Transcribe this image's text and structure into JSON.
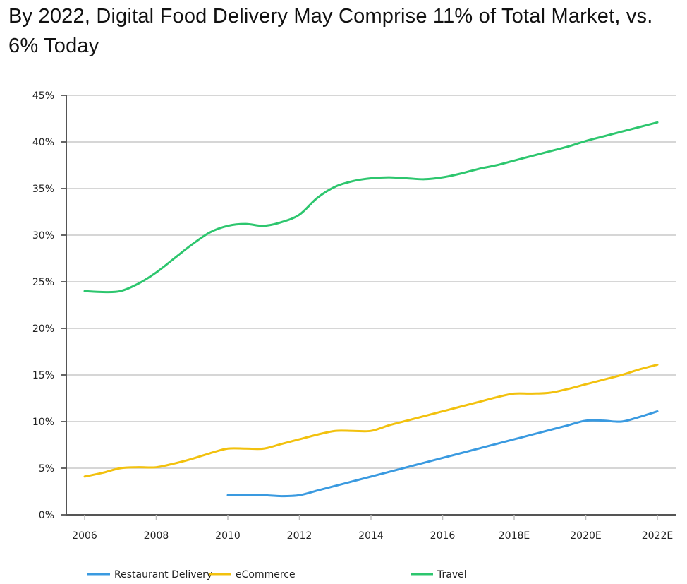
{
  "chart_data": {
    "type": "line",
    "title": "By 2022, Digital Food Delivery May Comprise 11% of Total Market, vs. 6% Today",
    "xlabel": "",
    "ylabel": "",
    "xlim": [
      2006,
      2022
    ],
    "ylim": [
      0,
      45
    ],
    "grid": true,
    "legend_position": "bottom",
    "x_ticks": [
      {
        "value": 2006,
        "label": "2006"
      },
      {
        "value": 2008,
        "label": "2008"
      },
      {
        "value": 2010,
        "label": "2010"
      },
      {
        "value": 2012,
        "label": "2012"
      },
      {
        "value": 2014,
        "label": "2014"
      },
      {
        "value": 2016,
        "label": "2016"
      },
      {
        "value": 2018,
        "label": "2018E"
      },
      {
        "value": 2020,
        "label": "2020E"
      },
      {
        "value": 2022,
        "label": "2022E"
      }
    ],
    "y_ticks": [
      {
        "value": 0,
        "label": "0%"
      },
      {
        "value": 5,
        "label": "5%"
      },
      {
        "value": 10,
        "label": "10%"
      },
      {
        "value": 15,
        "label": "15%"
      },
      {
        "value": 20,
        "label": "20%"
      },
      {
        "value": 25,
        "label": "25%"
      },
      {
        "value": 30,
        "label": "30%"
      },
      {
        "value": 35,
        "label": "35%"
      },
      {
        "value": 40,
        "label": "40%"
      },
      {
        "value": 45,
        "label": "45%"
      }
    ],
    "series": [
      {
        "name": "Restaurant Delivery",
        "color": "#3A9AE0",
        "x": [
          2010,
          2010.5,
          2011,
          2011.5,
          2012,
          2012.5,
          2013,
          2013.5,
          2014,
          2014.5,
          2015,
          2015.5,
          2016,
          2016.5,
          2017,
          2017.5,
          2018,
          2018.5,
          2019,
          2019.5,
          2020,
          2020.5,
          2021,
          2021.5,
          2022
        ],
        "values": [
          2.1,
          2.1,
          2.1,
          2.0,
          2.1,
          2.6,
          3.1,
          3.6,
          4.1,
          4.6,
          5.1,
          5.6,
          6.1,
          6.6,
          7.1,
          7.6,
          8.1,
          8.6,
          9.1,
          9.6,
          10.1,
          10.1,
          10.0,
          10.5,
          11.1
        ]
      },
      {
        "name": "eCommerce",
        "color": "#F2C10E",
        "x": [
          2006,
          2006.5,
          2007,
          2007.5,
          2008,
          2008.5,
          2009,
          2009.5,
          2010,
          2010.5,
          2011,
          2011.5,
          2012,
          2012.5,
          2013,
          2013.5,
          2014,
          2014.5,
          2015,
          2015.5,
          2016,
          2016.5,
          2017,
          2017.5,
          2018,
          2018.5,
          2019,
          2019.5,
          2020,
          2020.5,
          2021,
          2021.5,
          2022
        ],
        "values": [
          4.1,
          4.5,
          5.0,
          5.1,
          5.1,
          5.5,
          6.0,
          6.6,
          7.1,
          7.1,
          7.1,
          7.6,
          8.1,
          8.6,
          9.0,
          9.0,
          9.0,
          9.6,
          10.1,
          10.6,
          11.1,
          11.6,
          12.1,
          12.6,
          13.0,
          13.0,
          13.1,
          13.5,
          14.0,
          14.5,
          15.0,
          15.6,
          16.1
        ]
      },
      {
        "name": "Travel",
        "color": "#2DC66E",
        "x": [
          2006,
          2006.5,
          2007,
          2007.5,
          2008,
          2008.5,
          2009,
          2009.5,
          2010,
          2010.5,
          2011,
          2011.5,
          2012,
          2012.5,
          2013,
          2013.5,
          2014,
          2014.5,
          2015,
          2015.5,
          2016,
          2016.5,
          2017,
          2017.5,
          2018,
          2018.5,
          2019,
          2019.5,
          2020,
          2020.5,
          2021,
          2021.5,
          2022
        ],
        "values": [
          24.0,
          23.9,
          24.0,
          24.8,
          26.0,
          27.5,
          29.0,
          30.3,
          31.0,
          31.2,
          31.0,
          31.4,
          32.2,
          34.0,
          35.2,
          35.8,
          36.1,
          36.2,
          36.1,
          36.0,
          36.2,
          36.6,
          37.1,
          37.5,
          38.0,
          38.5,
          39.0,
          39.5,
          40.1,
          40.6,
          41.1,
          41.6,
          42.1
        ]
      }
    ]
  }
}
